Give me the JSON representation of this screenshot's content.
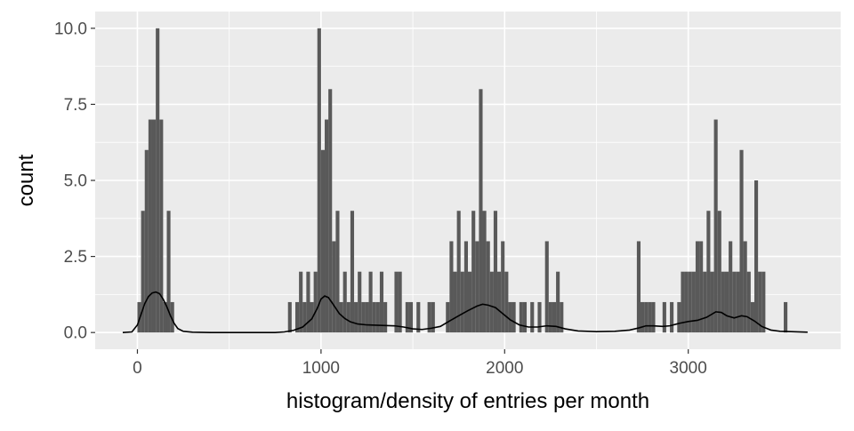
{
  "chart_data": {
    "type": "bar",
    "title": "",
    "xlabel": "histogram/density of entries per month",
    "ylabel": "count",
    "xlim": [
      -230,
      3830
    ],
    "ylim": [
      -0.55,
      10.55
    ],
    "grid": true,
    "x_ticks": [
      0,
      1000,
      2000,
      3000
    ],
    "x_tick_labels": [
      "0",
      "1000",
      "2000",
      "3000"
    ],
    "y_ticks": [
      0,
      2.5,
      5,
      7.5,
      10
    ],
    "y_tick_labels": [
      "0.0",
      "2.5",
      "5.0",
      "7.5",
      "10.0"
    ],
    "bin_width": 20,
    "bins": [
      [
        10,
        1
      ],
      [
        30,
        4
      ],
      [
        50,
        6
      ],
      [
        70,
        7
      ],
      [
        90,
        7
      ],
      [
        110,
        10
      ],
      [
        130,
        7
      ],
      [
        150,
        1
      ],
      [
        170,
        4
      ],
      [
        190,
        1
      ],
      [
        830,
        1
      ],
      [
        850,
        0
      ],
      [
        870,
        1
      ],
      [
        890,
        2
      ],
      [
        910,
        1
      ],
      [
        930,
        2
      ],
      [
        950,
        1
      ],
      [
        970,
        2
      ],
      [
        990,
        10
      ],
      [
        1010,
        6
      ],
      [
        1030,
        7
      ],
      [
        1050,
        8
      ],
      [
        1070,
        3
      ],
      [
        1090,
        4
      ],
      [
        1110,
        1
      ],
      [
        1130,
        2
      ],
      [
        1150,
        1
      ],
      [
        1170,
        4
      ],
      [
        1190,
        1
      ],
      [
        1210,
        2
      ],
      [
        1230,
        1
      ],
      [
        1250,
        1
      ],
      [
        1270,
        2
      ],
      [
        1290,
        1
      ],
      [
        1310,
        1
      ],
      [
        1330,
        2
      ],
      [
        1350,
        1
      ],
      [
        1410,
        2
      ],
      [
        1430,
        2
      ],
      [
        1470,
        1
      ],
      [
        1490,
        1
      ],
      [
        1530,
        1
      ],
      [
        1590,
        1
      ],
      [
        1610,
        1
      ],
      [
        1690,
        1
      ],
      [
        1710,
        3
      ],
      [
        1730,
        2
      ],
      [
        1750,
        4
      ],
      [
        1770,
        2
      ],
      [
        1790,
        3
      ],
      [
        1810,
        2
      ],
      [
        1830,
        4
      ],
      [
        1850,
        3
      ],
      [
        1870,
        8
      ],
      [
        1890,
        4
      ],
      [
        1910,
        3
      ],
      [
        1930,
        2
      ],
      [
        1950,
        4
      ],
      [
        1970,
        2
      ],
      [
        1990,
        3
      ],
      [
        2010,
        2
      ],
      [
        2030,
        1
      ],
      [
        2050,
        1
      ],
      [
        2090,
        1
      ],
      [
        2110,
        1
      ],
      [
        2150,
        1
      ],
      [
        2190,
        1
      ],
      [
        2230,
        3
      ],
      [
        2250,
        1
      ],
      [
        2270,
        1
      ],
      [
        2290,
        2
      ],
      [
        2310,
        1
      ],
      [
        2730,
        3
      ],
      [
        2750,
        1
      ],
      [
        2770,
        1
      ],
      [
        2790,
        1
      ],
      [
        2810,
        1
      ],
      [
        2870,
        1
      ],
      [
        2910,
        1
      ],
      [
        2950,
        1
      ],
      [
        2970,
        2
      ],
      [
        2990,
        2
      ],
      [
        3010,
        2
      ],
      [
        3030,
        2
      ],
      [
        3050,
        3
      ],
      [
        3070,
        3
      ],
      [
        3090,
        2
      ],
      [
        3110,
        4
      ],
      [
        3130,
        2
      ],
      [
        3150,
        7
      ],
      [
        3170,
        4
      ],
      [
        3190,
        2
      ],
      [
        3210,
        2
      ],
      [
        3230,
        3
      ],
      [
        3250,
        2
      ],
      [
        3270,
        2
      ],
      [
        3290,
        6
      ],
      [
        3310,
        3
      ],
      [
        3330,
        2
      ],
      [
        3350,
        1
      ],
      [
        3370,
        5
      ],
      [
        3390,
        2
      ],
      [
        3410,
        2
      ],
      [
        3530,
        1
      ]
    ],
    "density_curve": [
      [
        -80,
        0
      ],
      [
        -30,
        0.02
      ],
      [
        0,
        0.25
      ],
      [
        20,
        0.6
      ],
      [
        40,
        0.95
      ],
      [
        60,
        1.18
      ],
      [
        80,
        1.3
      ],
      [
        100,
        1.33
      ],
      [
        120,
        1.28
      ],
      [
        140,
        1.1
      ],
      [
        160,
        0.85
      ],
      [
        180,
        0.55
      ],
      [
        200,
        0.3
      ],
      [
        220,
        0.13
      ],
      [
        250,
        0.04
      ],
      [
        300,
        0.01
      ],
      [
        400,
        0.0
      ],
      [
        600,
        0.0
      ],
      [
        750,
        0.0
      ],
      [
        800,
        0.02
      ],
      [
        850,
        0.07
      ],
      [
        900,
        0.18
      ],
      [
        950,
        0.45
      ],
      [
        980,
        0.8
      ],
      [
        1000,
        1.1
      ],
      [
        1020,
        1.2
      ],
      [
        1040,
        1.15
      ],
      [
        1060,
        0.98
      ],
      [
        1080,
        0.8
      ],
      [
        1100,
        0.62
      ],
      [
        1130,
        0.46
      ],
      [
        1160,
        0.35
      ],
      [
        1200,
        0.28
      ],
      [
        1250,
        0.25
      ],
      [
        1300,
        0.24
      ],
      [
        1350,
        0.23
      ],
      [
        1400,
        0.22
      ],
      [
        1450,
        0.18
      ],
      [
        1500,
        0.12
      ],
      [
        1550,
        0.1
      ],
      [
        1600,
        0.14
      ],
      [
        1650,
        0.2
      ],
      [
        1700,
        0.38
      ],
      [
        1750,
        0.55
      ],
      [
        1800,
        0.72
      ],
      [
        1850,
        0.87
      ],
      [
        1880,
        0.93
      ],
      [
        1910,
        0.9
      ],
      [
        1950,
        0.82
      ],
      [
        1990,
        0.62
      ],
      [
        2030,
        0.42
      ],
      [
        2080,
        0.25
      ],
      [
        2130,
        0.18
      ],
      [
        2180,
        0.18
      ],
      [
        2230,
        0.22
      ],
      [
        2280,
        0.2
      ],
      [
        2330,
        0.12
      ],
      [
        2400,
        0.05
      ],
      [
        2500,
        0.03
      ],
      [
        2600,
        0.04
      ],
      [
        2680,
        0.08
      ],
      [
        2730,
        0.15
      ],
      [
        2770,
        0.22
      ],
      [
        2810,
        0.22
      ],
      [
        2860,
        0.2
      ],
      [
        2900,
        0.22
      ],
      [
        2950,
        0.3
      ],
      [
        3000,
        0.36
      ],
      [
        3050,
        0.4
      ],
      [
        3100,
        0.5
      ],
      [
        3150,
        0.68
      ],
      [
        3180,
        0.66
      ],
      [
        3210,
        0.55
      ],
      [
        3250,
        0.48
      ],
      [
        3290,
        0.55
      ],
      [
        3320,
        0.52
      ],
      [
        3360,
        0.38
      ],
      [
        3400,
        0.2
      ],
      [
        3450,
        0.08
      ],
      [
        3500,
        0.04
      ],
      [
        3560,
        0.03
      ],
      [
        3650,
        0.01
      ]
    ]
  }
}
